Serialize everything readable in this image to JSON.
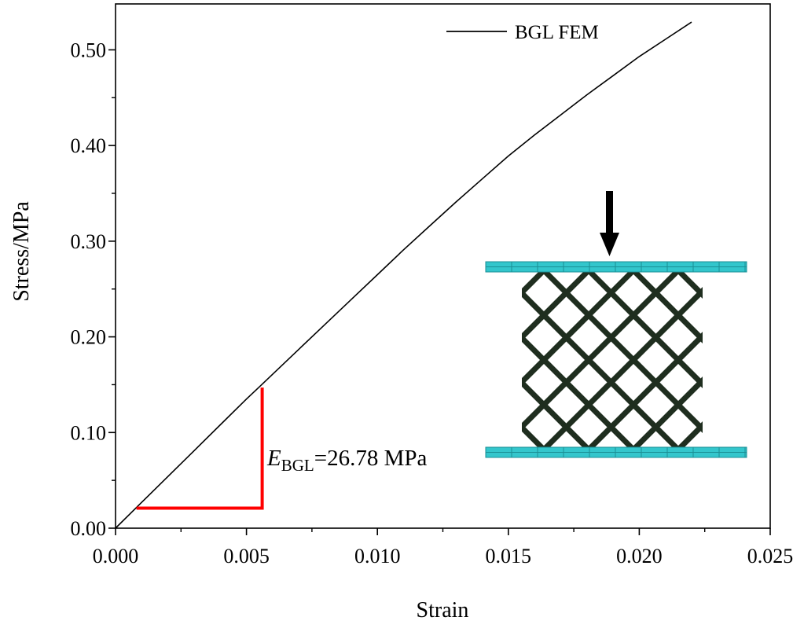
{
  "chart_data": {
    "type": "line",
    "xlabel": "Strain",
    "ylabel": "Stress/MPa",
    "xlim": [
      0,
      0.025
    ],
    "ylim": [
      0,
      0.548
    ],
    "xticks": [
      0.0,
      0.005,
      0.01,
      0.015,
      0.02,
      0.025
    ],
    "xtick_labels": [
      "0.000",
      "0.005",
      "0.010",
      "0.015",
      "0.020",
      "0.025"
    ],
    "yticks": [
      0,
      0.1,
      0.2,
      0.3,
      0.4,
      0.5
    ],
    "ytick_labels": [
      "0.00",
      "0.10",
      "0.20",
      "0.30",
      "0.40",
      "0.50"
    ],
    "grid": false,
    "legend_position": "top-right",
    "series": [
      {
        "name": "BGL FEM",
        "color": "#000000",
        "x": [
          0,
          0.001,
          0.002,
          0.003,
          0.004,
          0.005,
          0.0055,
          0.007,
          0.008,
          0.009,
          0.01,
          0.011,
          0.012,
          0.013,
          0.014,
          0.015,
          0.016,
          0.017,
          0.018,
          0.019,
          0.02,
          0.021,
          0.022
        ],
        "y": [
          0,
          0.027,
          0.054,
          0.081,
          0.108,
          0.135,
          0.148,
          0.187,
          0.213,
          0.239,
          0.265,
          0.291,
          0.316,
          0.341,
          0.365,
          0.389,
          0.411,
          0.432,
          0.453,
          0.473,
          0.493,
          0.511,
          0.529
        ]
      }
    ],
    "annotations": {
      "modulus_symbol": "E",
      "modulus_subscript": "BGL",
      "modulus_value": "=26.78 MPa",
      "slope_triangle_color": "#ff0000",
      "slope_triangle": {
        "x_start": 0.0008,
        "x_end": 0.0056,
        "y_base": 0.021,
        "y_top": 0.147
      }
    },
    "inset": {
      "description_icon": "lattice-compression-model",
      "plate_color": "#33c6cc",
      "lattice_color": "#1f2e1f",
      "arrow_color": "#000000"
    }
  }
}
